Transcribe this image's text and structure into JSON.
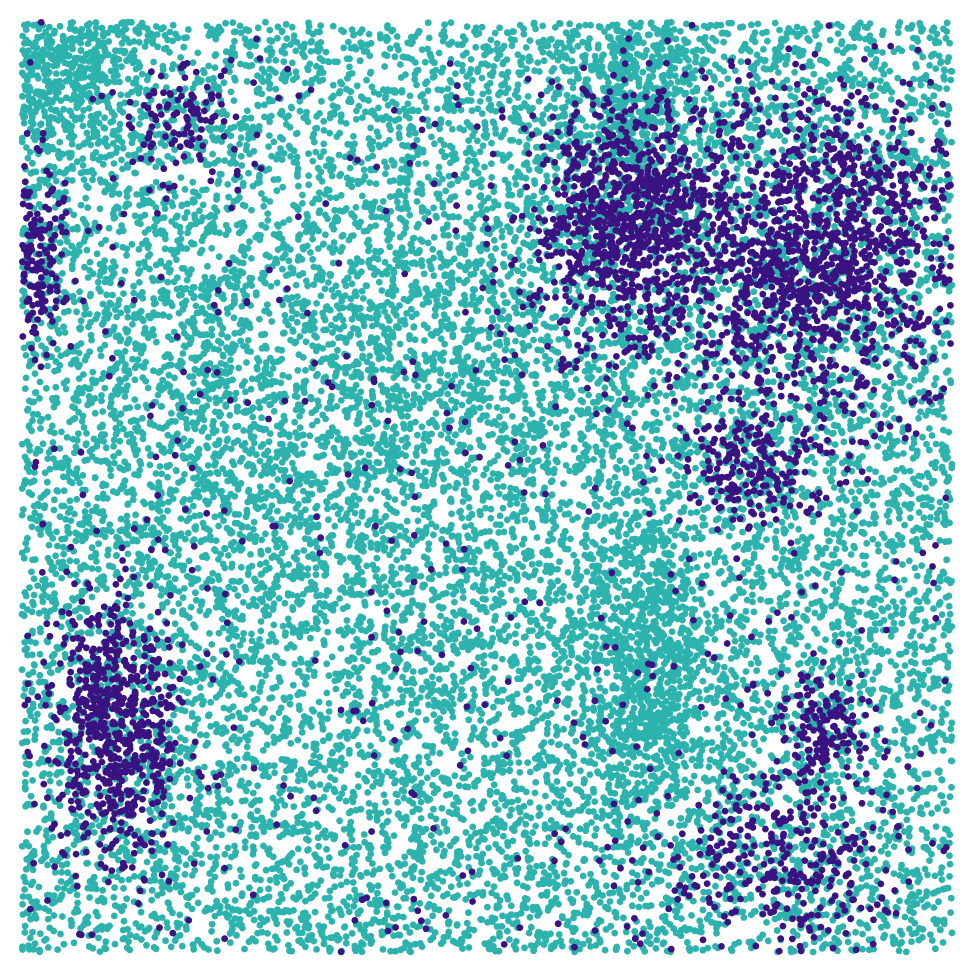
{
  "chart_data": {
    "type": "scatter",
    "title": "",
    "xlabel": "",
    "ylabel": "",
    "xlim": [
      0,
      1
    ],
    "ylim": [
      0,
      1
    ],
    "axes_visible": false,
    "grid": false,
    "legend": "none",
    "point_count_approx": 20000,
    "series": [
      {
        "color": "#2db3ae",
        "regions": [
          {
            "kind": "background",
            "cx": 0.5,
            "cy": 0.5,
            "sx": 0.5,
            "sy": 0.5,
            "weight": 14000
          },
          {
            "kind": "dense",
            "cx": 0.665,
            "cy": 0.7,
            "sx": 0.035,
            "sy": 0.085,
            "weight": 700
          },
          {
            "kind": "dense",
            "cx": 0.04,
            "cy": 0.04,
            "sx": 0.045,
            "sy": 0.045,
            "weight": 450
          },
          {
            "kind": "dense",
            "cx": 0.655,
            "cy": 0.07,
            "sx": 0.04,
            "sy": 0.05,
            "weight": 350
          },
          {
            "kind": "dense",
            "cx": 0.33,
            "cy": 0.42,
            "sx": 0.15,
            "sy": 0.12,
            "weight": 900
          }
        ]
      },
      {
        "color": "#3a1282",
        "regions": [
          {
            "kind": "cluster",
            "cx": 0.1,
            "cy": 0.76,
            "sx": 0.035,
            "sy": 0.07,
            "weight": 650
          },
          {
            "kind": "cluster",
            "cx": 0.655,
            "cy": 0.22,
            "sx": 0.055,
            "sy": 0.07,
            "weight": 900
          },
          {
            "kind": "cluster",
            "cx": 0.86,
            "cy": 0.25,
            "sx": 0.075,
            "sy": 0.09,
            "weight": 1300
          },
          {
            "kind": "cluster",
            "cx": 0.82,
            "cy": 0.9,
            "sx": 0.07,
            "sy": 0.05,
            "weight": 300
          },
          {
            "kind": "cluster",
            "cx": 0.86,
            "cy": 0.76,
            "sx": 0.03,
            "sy": 0.03,
            "weight": 150
          },
          {
            "kind": "cluster",
            "cx": 0.015,
            "cy": 0.26,
            "sx": 0.015,
            "sy": 0.05,
            "weight": 160
          },
          {
            "kind": "cluster",
            "cx": 0.785,
            "cy": 0.48,
            "sx": 0.04,
            "sy": 0.03,
            "weight": 180
          },
          {
            "kind": "cluster",
            "cx": 0.165,
            "cy": 0.1,
            "sx": 0.03,
            "sy": 0.03,
            "weight": 90
          },
          {
            "kind": "scatter",
            "cx": 0.5,
            "cy": 0.5,
            "sx": 0.5,
            "sy": 0.5,
            "weight": 500
          }
        ]
      }
    ]
  }
}
